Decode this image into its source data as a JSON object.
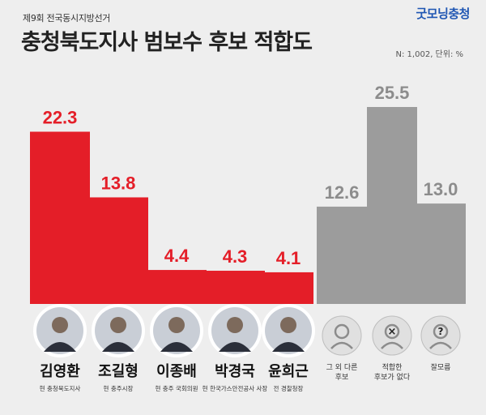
{
  "header": {
    "subtitle": "제9회 전국동시지방선거",
    "title": "충청북도지사 범보수 후보 적합도",
    "logo": "굿모닝충청",
    "note": "N: 1,002, 단위: %"
  },
  "colors": {
    "candidate_bar": "#e41e28",
    "other_bar": "#9c9c9c",
    "value_red": "#e41e28",
    "value_gray": "#8c8c8c",
    "background": "#eeeeee"
  },
  "chart_data": {
    "type": "bar",
    "categories": [
      "김영환",
      "조길형",
      "이종배",
      "박경국",
      "윤희근",
      "그 외 다른 후보",
      "적합한 후보가 없다",
      "잘모름"
    ],
    "values": [
      22.3,
      13.8,
      4.4,
      4.3,
      4.1,
      12.6,
      25.5,
      13.0
    ],
    "value_labels": [
      "22.3",
      "13.8",
      "4.4",
      "4.3",
      "4.1",
      "12.6",
      "25.5",
      "13.0"
    ],
    "ylim": [
      0,
      27
    ],
    "grid": false,
    "title": "충청북도지사 범보수 후보 적합도",
    "candidates": [
      {
        "name": "김영환",
        "role": "현 충청북도지사"
      },
      {
        "name": "조길형",
        "role": "현 충주시장"
      },
      {
        "name": "이종배",
        "role": "현 충주 국회의원"
      },
      {
        "name": "박경국",
        "role": "현 한국가스안전공사 사장"
      },
      {
        "name": "윤희근",
        "role": "전 경찰청장"
      }
    ],
    "others": [
      {
        "label": "그 외 다른 후보",
        "icon": "person-icon"
      },
      {
        "label": "적합한 후보가 없다",
        "icon": "person-x-icon"
      },
      {
        "label": "잘모름",
        "icon": "person-question-icon"
      }
    ]
  }
}
